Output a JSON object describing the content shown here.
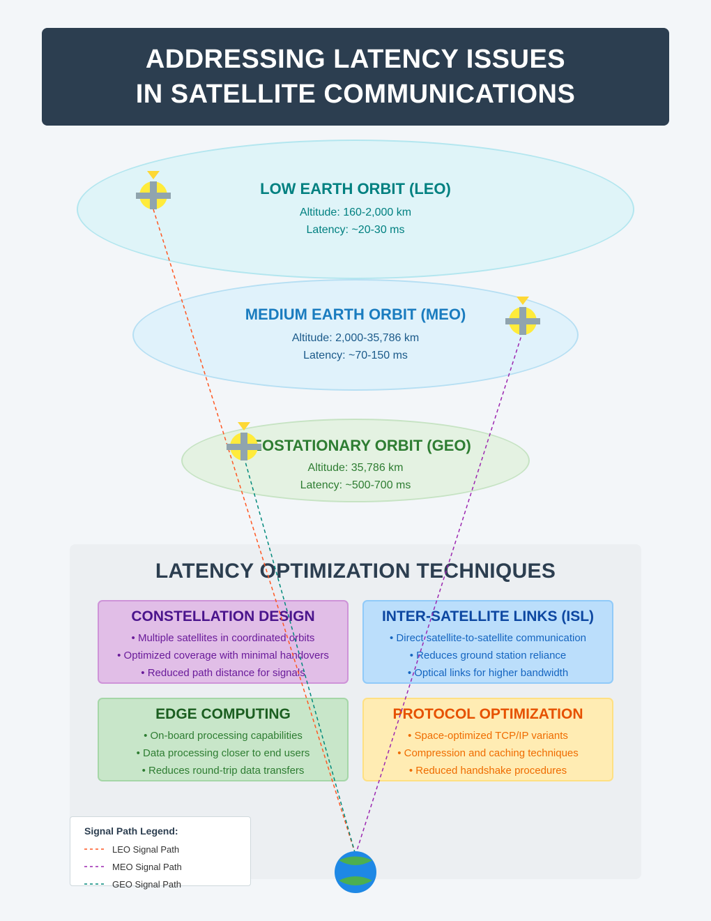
{
  "header": {
    "line1": "ADDRESSING LATENCY ISSUES",
    "line2": "IN SATELLITE COMMUNICATIONS"
  },
  "orbits": {
    "leo": {
      "name": "LOW EARTH ORBIT (LEO)",
      "altitude": "Altitude: 160-2,000 km",
      "latency": "Latency: ~20-30 ms"
    },
    "meo": {
      "name": "MEDIUM EARTH ORBIT (MEO)",
      "altitude": "Altitude: 2,000-35,786 km",
      "latency": "Latency: ~70-150 ms"
    },
    "geo": {
      "name": "GEOSTATIONARY ORBIT (GEO)",
      "altitude": "Altitude: 35,786 km",
      "latency": "Latency: ~500-700 ms"
    }
  },
  "techniques": {
    "title": "LATENCY OPTIMIZATION TECHNIQUES",
    "cards": [
      {
        "title": "CONSTELLATION DESIGN",
        "items": [
          "• Multiple satellites in coordinated orbits",
          "• Optimized coverage with minimal handovers",
          "• Reduced path distance for signals"
        ]
      },
      {
        "title": "INTER-SATELLITE LINKS (ISL)",
        "items": [
          "• Direct satellite-to-satellite communication",
          "• Reduces ground station reliance",
          "• Optical links for higher bandwidth"
        ]
      },
      {
        "title": "EDGE COMPUTING",
        "items": [
          "• On-board processing capabilities",
          "• Data processing closer to end users",
          "• Reduces round-trip data transfers"
        ]
      },
      {
        "title": "PROTOCOL OPTIMIZATION",
        "items": [
          "• Space-optimized TCP/IP variants",
          "• Compression and caching techniques",
          "• Reduced handshake procedures"
        ]
      }
    ]
  },
  "legend": {
    "title": "Signal Path Legend:",
    "items": [
      {
        "label": "LEO Signal Path",
        "color": "#ff5722"
      },
      {
        "label": "MEO Signal Path",
        "color": "#9c27b0"
      },
      {
        "label": "GEO Signal Path",
        "color": "#00897b"
      }
    ]
  },
  "colors": {
    "header_bg": "#2c3e50",
    "satellite_body": "#ffeb3b",
    "satellite_panel": "#90a4ae",
    "earth_ocean": "#1e88e5",
    "earth_land": "#4caf50"
  }
}
